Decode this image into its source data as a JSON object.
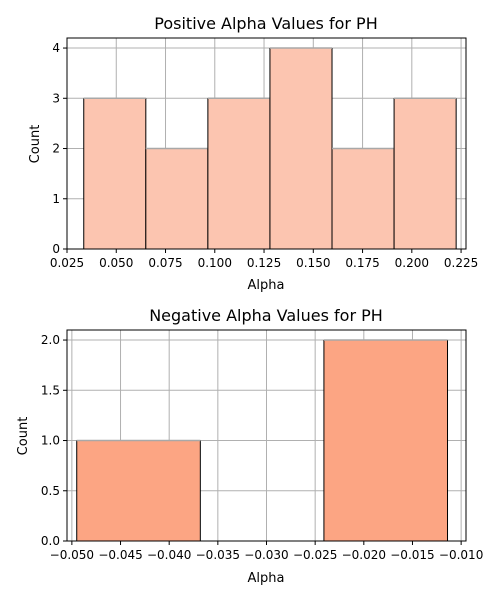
{
  "chart_data": [
    {
      "type": "bar",
      "title": "Positive Alpha Values for PH",
      "xlabel": "Alpha",
      "ylabel": "Count",
      "bin_edges": [
        0.0335,
        0.065,
        0.0965,
        0.128,
        0.1595,
        0.191,
        0.2225
      ],
      "values": [
        3,
        2,
        3,
        4,
        2,
        3
      ],
      "xlim": [
        0.025,
        0.2275
      ],
      "ylim": [
        0,
        4.2
      ],
      "xticks": [
        0.025,
        0.05,
        0.075,
        0.1,
        0.125,
        0.15,
        0.175,
        0.2,
        0.225
      ],
      "xtick_labels": [
        "0.025",
        "0.050",
        "0.075",
        "0.100",
        "0.125",
        "0.150",
        "0.175",
        "0.200",
        "0.225"
      ],
      "yticks": [
        0,
        1,
        2,
        3,
        4
      ],
      "ytick_labels": [
        "0",
        "1",
        "2",
        "3",
        "4"
      ],
      "grid": true,
      "bar_color": "#fcc5b0",
      "edge_color": "#000000"
    },
    {
      "type": "bar",
      "title": "Negative Alpha Values for PH",
      "xlabel": "Alpha",
      "ylabel": "Count",
      "bin_edges": [
        -0.0495,
        -0.0368,
        -0.0241,
        -0.0114
      ],
      "values": [
        1,
        0,
        2
      ],
      "xlim": [
        -0.0505,
        -0.0095
      ],
      "ylim": [
        0,
        2.1
      ],
      "xticks": [
        -0.05,
        -0.045,
        -0.04,
        -0.035,
        -0.03,
        -0.025,
        -0.02,
        -0.015,
        -0.01
      ],
      "xtick_labels": [
        "−0.050",
        "−0.045",
        "−0.040",
        "−0.035",
        "−0.030",
        "−0.025",
        "−0.020",
        "−0.015",
        "−0.010"
      ],
      "yticks": [
        0,
        0.5,
        1,
        1.5,
        2
      ],
      "ytick_labels": [
        "0.0",
        "0.5",
        "1.0",
        "1.5",
        "2.0"
      ],
      "grid": true,
      "bar_color": "#fca583",
      "edge_color": "#000000"
    }
  ]
}
